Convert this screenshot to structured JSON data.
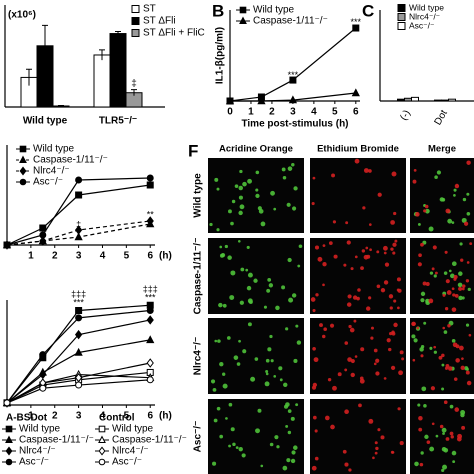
{
  "chart_data": [
    {
      "type": "bar",
      "y_label": "(x10⁶)",
      "categories": [
        "Wild type",
        "TLR5⁻/⁻"
      ],
      "series": [
        {
          "name": "ST",
          "color": "#ffffff",
          "values": [
            29,
            51
          ],
          "errors": [
            8,
            5
          ]
        },
        {
          "name": "ST ΔFli",
          "color": "#000000",
          "values": [
            60,
            72
          ],
          "errors": [
            20,
            2
          ]
        },
        {
          "name": "ST ΔFli + FliC",
          "color": "#999999",
          "values": [
            1,
            14
          ],
          "errors": [
            0.5,
            3
          ]
        }
      ],
      "ylim": [
        0,
        100
      ],
      "annotations": [
        {
          "text": "‡",
          "series": 2,
          "category": 1
        }
      ]
    },
    {
      "type": "line",
      "panel": "B",
      "x_label": "Time post-stimulus (h)",
      "y_label": "IL1-β(pg/ml)",
      "x": [
        0,
        1.5,
        3,
        6
      ],
      "xlim": [
        0,
        6.2
      ],
      "xticks": [
        0,
        1,
        2,
        3,
        4,
        5,
        6
      ],
      "ylim": [
        0,
        500
      ],
      "series": [
        {
          "name": "Wild type",
          "color": "#000000",
          "marker": "square",
          "filled": true,
          "dashed": false,
          "values": [
            0,
            22,
            115,
            401
          ]
        },
        {
          "name": "Caspase-1/11⁻/⁻",
          "color": "#000000",
          "marker": "triangle",
          "filled": true,
          "dashed": false,
          "values": [
            0,
            0,
            5,
            44
          ]
        }
      ],
      "annotations": [
        {
          "text": "***",
          "x": 3,
          "y": 140
        },
        {
          "text": "***",
          "x": 6,
          "y": 430
        }
      ]
    },
    {
      "type": "bar",
      "panel": "C",
      "categories": [
        "(-)",
        "Dot"
      ],
      "ylim": [
        0,
        100
      ],
      "series": [
        {
          "name": "Wild type",
          "color": "#000000",
          "values": [
            2,
            1
          ]
        },
        {
          "name": "Nlrc4⁻/⁻",
          "color": "#999999",
          "values": [
            3,
            1
          ]
        },
        {
          "name": "Asc⁻/⁻",
          "color": "#ffffff",
          "values": [
            4,
            2
          ]
        }
      ]
    },
    {
      "type": "line",
      "x_label": "(h)",
      "x": [
        0,
        1.5,
        3,
        6
      ],
      "xlim": [
        0,
        6.2
      ],
      "xticks": [
        1,
        2,
        3,
        4,
        5,
        6
      ],
      "ylim": [
        0,
        100
      ],
      "series": [
        {
          "name": "Wild type",
          "color": "#000000",
          "marker": "square",
          "filled": true,
          "dashed": false,
          "values": [
            0,
            17,
            50,
            60
          ]
        },
        {
          "name": "Caspase-1/11⁻/⁻",
          "color": "#000000",
          "marker": "triangle",
          "filled": true,
          "dashed": true,
          "values": [
            0,
            4,
            8,
            21
          ]
        },
        {
          "name": "Nlrc4⁻/⁻",
          "color": "#000000",
          "marker": "diamond",
          "filled": true,
          "dashed": true,
          "values": [
            0,
            4,
            15,
            24
          ]
        },
        {
          "name": "Asc⁻/⁻",
          "color": "#000000",
          "marker": "circle",
          "filled": true,
          "dashed": false,
          "values": [
            0,
            10,
            65,
            67
          ]
        }
      ],
      "annotations": [
        {
          "text": "**",
          "x": 6,
          "y": 30
        },
        {
          "text": "‡",
          "x": 3,
          "y": 20
        }
      ]
    },
    {
      "type": "line",
      "x_label": "(h)",
      "x": [
        0,
        1.5,
        3,
        6
      ],
      "xlim": [
        0,
        6.2
      ],
      "xticks": [
        1,
        2,
        3,
        4,
        5,
        6
      ],
      "ylim": [
        0,
        100
      ],
      "legend_groups": [
        "A-BSDot",
        "Control"
      ],
      "series": [
        {
          "name": "Wild type",
          "group": 0,
          "color": "#000000",
          "marker": "square",
          "filled": true,
          "dashed": false,
          "values": [
            2,
            45,
            90,
            95
          ]
        },
        {
          "name": "Caspase-1/11⁻/⁻",
          "group": 0,
          "color": "#000000",
          "marker": "triangle",
          "filled": true,
          "dashed": false,
          "values": [
            2,
            31,
            50,
            62
          ]
        },
        {
          "name": "Nlrc4⁻/⁻",
          "group": 0,
          "color": "#000000",
          "marker": "diamond",
          "filled": true,
          "dashed": false,
          "values": [
            2,
            29,
            67,
            81
          ]
        },
        {
          "name": "Asc⁻/⁻",
          "group": 0,
          "color": "#000000",
          "marker": "circle",
          "filled": true,
          "dashed": false,
          "values": [
            2,
            48,
            83,
            90
          ]
        },
        {
          "name": "Wild type",
          "group": 1,
          "color": "#000000",
          "marker": "square",
          "filled": false,
          "dashed": false,
          "values": [
            2,
            19,
            24,
            31
          ]
        },
        {
          "name": "Caspase-1/11⁻/⁻",
          "group": 1,
          "color": "#000000",
          "marker": "triangle",
          "filled": false,
          "dashed": false,
          "values": [
            2,
            21,
            29,
            26
          ]
        },
        {
          "name": "Nlrc4⁻/⁻",
          "group": 1,
          "color": "#000000",
          "marker": "diamond",
          "filled": false,
          "dashed": false,
          "values": [
            2,
            21,
            26,
            40
          ]
        },
        {
          "name": "Asc⁻/⁻",
          "group": 1,
          "color": "#000000",
          "marker": "circle",
          "filled": false,
          "dashed": false,
          "values": [
            2,
            16,
            19,
            24
          ]
        }
      ],
      "annotations": [
        {
          "text": "‡‡‡",
          "x": 3,
          "y": 105
        },
        {
          "text": "***",
          "x": 3,
          "y": 97
        },
        {
          "text": "‡‡‡",
          "x": 6,
          "y": 110
        },
        {
          "text": "***",
          "x": 6,
          "y": 102
        }
      ]
    }
  ],
  "micrographs": {
    "panel": "F",
    "columns": [
      "Acridine Orange",
      "Ethidium Bromide",
      "Merge"
    ],
    "rows": [
      "Wild type",
      "Caspase-1/11⁻/⁻",
      "Nlrc4⁻/⁻",
      "Asc⁻/⁻"
    ]
  }
}
